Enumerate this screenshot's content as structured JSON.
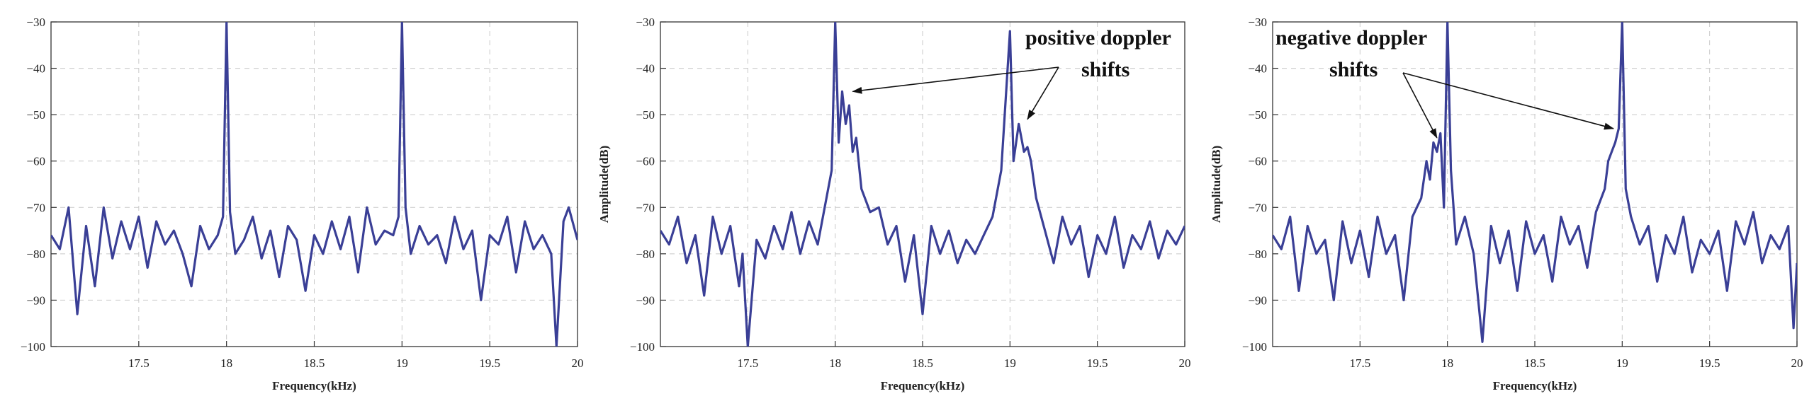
{
  "chart_data": [
    {
      "type": "line",
      "title": "",
      "xlabel": "Frequency(kHz)",
      "ylabel": "",
      "xlim": [
        17.0,
        20.0
      ],
      "ylim": [
        -100,
        -30
      ],
      "xticks": [
        17.5,
        18,
        18.5,
        19,
        19.5,
        20
      ],
      "xtick_labels": [
        "17.5",
        "18",
        "18.5",
        "19",
        "19.5",
        "20"
      ],
      "yticks": [
        -30,
        -40,
        -50,
        -60,
        -70,
        -80,
        -90,
        -100
      ],
      "ytick_labels": [
        "−30",
        "−40",
        "−50",
        "−60",
        "−70",
        "−80",
        "−90",
        "−100"
      ],
      "grid": true,
      "color": "#3a3f96",
      "x": [
        17.0,
        17.05,
        17.1,
        17.15,
        17.2,
        17.25,
        17.3,
        17.35,
        17.4,
        17.45,
        17.5,
        17.55,
        17.6,
        17.65,
        17.7,
        17.75,
        17.8,
        17.85,
        17.9,
        17.95,
        17.98,
        18.0,
        18.02,
        18.05,
        18.1,
        18.15,
        18.2,
        18.25,
        18.3,
        18.35,
        18.4,
        18.45,
        18.5,
        18.55,
        18.6,
        18.65,
        18.7,
        18.75,
        18.8,
        18.85,
        18.9,
        18.95,
        18.98,
        19.0,
        19.02,
        19.05,
        19.1,
        19.15,
        19.2,
        19.25,
        19.3,
        19.35,
        19.4,
        19.45,
        19.5,
        19.55,
        19.6,
        19.65,
        19.7,
        19.75,
        19.8,
        19.85,
        19.88,
        19.92,
        19.95,
        20.0
      ],
      "y": [
        -76,
        -79,
        -70,
        -93,
        -74,
        -87,
        -70,
        -81,
        -73,
        -79,
        -72,
        -83,
        -73,
        -78,
        -75,
        -80,
        -87,
        -74,
        -79,
        -76,
        -72,
        -30,
        -71,
        -80,
        -77,
        -72,
        -81,
        -75,
        -85,
        -74,
        -77,
        -88,
        -76,
        -80,
        -73,
        -79,
        -72,
        -84,
        -70,
        -78,
        -75,
        -76,
        -72,
        -30,
        -70,
        -80,
        -74,
        -78,
        -76,
        -82,
        -72,
        -79,
        -75,
        -90,
        -76,
        -78,
        -72,
        -84,
        -73,
        -79,
        -76,
        -80,
        -100,
        -73,
        -70,
        -77
      ],
      "annotations": []
    },
    {
      "type": "line",
      "title": "",
      "xlabel": "Frequency(kHz)",
      "ylabel": "Amplitude(dB)",
      "xlim": [
        17.0,
        20.0
      ],
      "ylim": [
        -100,
        -30
      ],
      "xticks": [
        17.5,
        18,
        18.5,
        19,
        19.5,
        20
      ],
      "xtick_labels": [
        "17.5",
        "18",
        "18.5",
        "19",
        "19.5",
        "20"
      ],
      "yticks": [
        -30,
        -40,
        -50,
        -60,
        -70,
        -80,
        -90,
        -100
      ],
      "ytick_labels": [
        "−30",
        "−40",
        "−50",
        "−60",
        "−70",
        "−80",
        "−90",
        "−100"
      ],
      "grid": true,
      "color": "#3a3f96",
      "x": [
        17.0,
        17.05,
        17.1,
        17.15,
        17.2,
        17.25,
        17.3,
        17.35,
        17.4,
        17.45,
        17.47,
        17.5,
        17.55,
        17.6,
        17.65,
        17.7,
        17.75,
        17.8,
        17.85,
        17.9,
        17.95,
        17.98,
        18.0,
        18.02,
        18.04,
        18.06,
        18.08,
        18.1,
        18.12,
        18.15,
        18.2,
        18.25,
        18.3,
        18.35,
        18.4,
        18.45,
        18.5,
        18.55,
        18.6,
        18.65,
        18.7,
        18.75,
        18.8,
        18.85,
        18.9,
        18.95,
        19.0,
        19.02,
        19.05,
        19.08,
        19.1,
        19.12,
        19.15,
        19.2,
        19.25,
        19.3,
        19.35,
        19.4,
        19.45,
        19.5,
        19.55,
        19.6,
        19.65,
        19.7,
        19.75,
        19.8,
        19.85,
        19.9,
        19.95,
        20.0
      ],
      "y": [
        -75,
        -78,
        -72,
        -82,
        -76,
        -89,
        -72,
        -80,
        -74,
        -87,
        -80,
        -100,
        -77,
        -81,
        -74,
        -79,
        -71,
        -80,
        -73,
        -78,
        -68,
        -62,
        -30,
        -56,
        -45,
        -52,
        -48,
        -58,
        -55,
        -66,
        -71,
        -70,
        -78,
        -74,
        -86,
        -76,
        -93,
        -74,
        -80,
        -75,
        -82,
        -77,
        -80,
        -76,
        -72,
        -62,
        -32,
        -60,
        -52,
        -58,
        -57,
        -60,
        -68,
        -75,
        -82,
        -72,
        -78,
        -74,
        -85,
        -76,
        -80,
        -72,
        -83,
        -76,
        -79,
        -73,
        -81,
        -75,
        -78,
        -74
      ],
      "annotations": [
        {
          "text": "positive doppler",
          "line": 1
        },
        {
          "text": "shifts",
          "line": 2
        }
      ]
    },
    {
      "type": "line",
      "title": "",
      "xlabel": "Frequency(kHz)",
      "ylabel": "Amplitude(dB)",
      "xlim": [
        17.0,
        20.0
      ],
      "ylim": [
        -100,
        -30
      ],
      "xticks": [
        17.5,
        18,
        18.5,
        19,
        19.5,
        20
      ],
      "xtick_labels": [
        "17.5",
        "18",
        "18.5",
        "19",
        "19.5",
        "20"
      ],
      "yticks": [
        -30,
        -40,
        -50,
        -60,
        -70,
        -80,
        -90,
        -100
      ],
      "ytick_labels": [
        "−30",
        "−40",
        "−50",
        "−60",
        "−70",
        "−80",
        "−90",
        "−100"
      ],
      "grid": true,
      "color": "#3a3f96",
      "x": [
        17.0,
        17.05,
        17.1,
        17.15,
        17.2,
        17.25,
        17.3,
        17.35,
        17.4,
        17.45,
        17.5,
        17.55,
        17.6,
        17.65,
        17.7,
        17.75,
        17.8,
        17.85,
        17.88,
        17.9,
        17.92,
        17.94,
        17.96,
        17.98,
        18.0,
        18.02,
        18.05,
        18.1,
        18.15,
        18.2,
        18.25,
        18.3,
        18.35,
        18.4,
        18.45,
        18.5,
        18.55,
        18.6,
        18.65,
        18.7,
        18.75,
        18.8,
        18.85,
        18.9,
        18.92,
        18.94,
        18.96,
        18.98,
        19.0,
        19.02,
        19.05,
        19.1,
        19.15,
        19.2,
        19.25,
        19.3,
        19.35,
        19.4,
        19.45,
        19.5,
        19.55,
        19.6,
        19.65,
        19.7,
        19.75,
        19.8,
        19.85,
        19.9,
        19.95,
        19.98,
        20.0
      ],
      "y": [
        -76,
        -79,
        -72,
        -88,
        -74,
        -80,
        -77,
        -90,
        -73,
        -82,
        -75,
        -85,
        -72,
        -80,
        -76,
        -90,
        -72,
        -68,
        -60,
        -64,
        -56,
        -58,
        -54,
        -70,
        -30,
        -62,
        -78,
        -72,
        -80,
        -99,
        -74,
        -82,
        -75,
        -88,
        -73,
        -80,
        -76,
        -86,
        -72,
        -78,
        -74,
        -83,
        -71,
        -66,
        -60,
        -58,
        -56,
        -53,
        -30,
        -66,
        -72,
        -78,
        -74,
        -86,
        -76,
        -80,
        -72,
        -84,
        -77,
        -80,
        -75,
        -88,
        -73,
        -78,
        -71,
        -82,
        -76,
        -79,
        -74,
        -96,
        -82
      ],
      "annotations": [
        {
          "text": "negative doppler",
          "line": 1
        },
        {
          "text": "shifts",
          "line": 2
        }
      ]
    }
  ]
}
